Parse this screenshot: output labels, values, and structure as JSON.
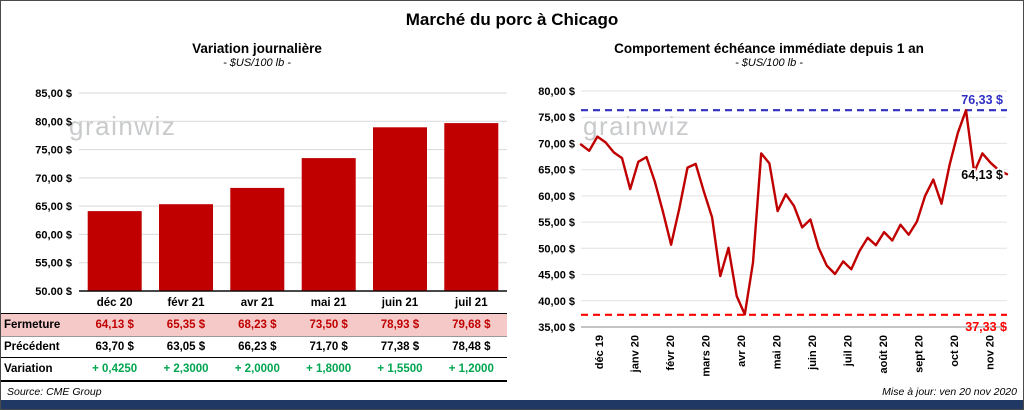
{
  "page": {
    "title": "Marché du porc à Chicago",
    "source": "Source: CME Group",
    "updated": "Mise à jour: ven 20 nov 2020",
    "watermark": "grainwiz"
  },
  "colors": {
    "fermeture_bg": "#F6C9C9",
    "fermeture_text": "#C00000",
    "variation_green": "#00A550",
    "accent_bar": "#1F3864"
  },
  "table": {
    "row_labels": [
      "Fermeture",
      "Précédent",
      "Variation"
    ],
    "headers": [
      "déc 20",
      "févr 21",
      "avr 21",
      "mai 21",
      "juin 21",
      "juil 21"
    ],
    "fermeture": [
      "64,13 $",
      "65,35 $",
      "68,23 $",
      "73,50 $",
      "78,93 $",
      "79,68 $"
    ],
    "precedent": [
      "63,70 $",
      "63,05 $",
      "66,23 $",
      "71,70 $",
      "77,38 $",
      "78,48 $"
    ],
    "variation": [
      "+ 0,4250",
      "+ 2,3000",
      "+ 2,0000",
      "+ 1,8000",
      "+ 1,5500",
      "+ 1,2000"
    ]
  },
  "chart_data": [
    {
      "type": "bar",
      "title": "Variation journalière",
      "subtitle": "- $US/100 lb -",
      "categories": [
        "déc 20",
        "févr 21",
        "avr 21",
        "mai 21",
        "juin 21",
        "juil 21"
      ],
      "values": [
        64.13,
        65.35,
        68.23,
        73.5,
        78.93,
        79.68
      ],
      "ylim": [
        50,
        85
      ],
      "ytick_step": 5,
      "ylabel": "$US/100 lb",
      "grid": true,
      "bar_color": "#C00000"
    },
    {
      "type": "line",
      "title": "Comportement échéance immédiate depuis 1 an",
      "subtitle": "- $US/100 lb -",
      "x_labels": [
        "déc 19",
        "janv 20",
        "févr 20",
        "mars 20",
        "avr 20",
        "mai 20",
        "juin 20",
        "juil 20",
        "août 20",
        "sept 20",
        "oct 20",
        "nov 20"
      ],
      "values": [
        69.8,
        68.6,
        71.3,
        70.2,
        68.3,
        67.2,
        61.3,
        66.5,
        67.4,
        62.8,
        57.0,
        50.7,
        57.6,
        65.4,
        66.1,
        60.8,
        55.9,
        44.7,
        50.1,
        40.9,
        37.4,
        47.3,
        68.1,
        66.2,
        57.1,
        60.3,
        58.1,
        54.0,
        55.5,
        50.1,
        46.7,
        45.1,
        47.5,
        46.0,
        49.5,
        52.0,
        50.6,
        53.1,
        51.5,
        54.5,
        52.6,
        55.1,
        60.0,
        63.1,
        58.5,
        66.0,
        72.0,
        76.33,
        64.5,
        68.1,
        66.3,
        64.9,
        64.13
      ],
      "ylim": [
        35,
        80
      ],
      "ytick_step": 5,
      "grid": true,
      "line_color": "#C00000",
      "annotations": {
        "max_line": {
          "value": 76.33,
          "label": "76,33 $",
          "color": "#2F2FC4",
          "style": "dashed"
        },
        "min_line": {
          "value": 37.33,
          "label": "37,33 $",
          "color": "#FF0000",
          "style": "dashed"
        },
        "last_value": {
          "value": 64.13,
          "label": "64,13 $",
          "color": "#000000"
        }
      }
    }
  ]
}
